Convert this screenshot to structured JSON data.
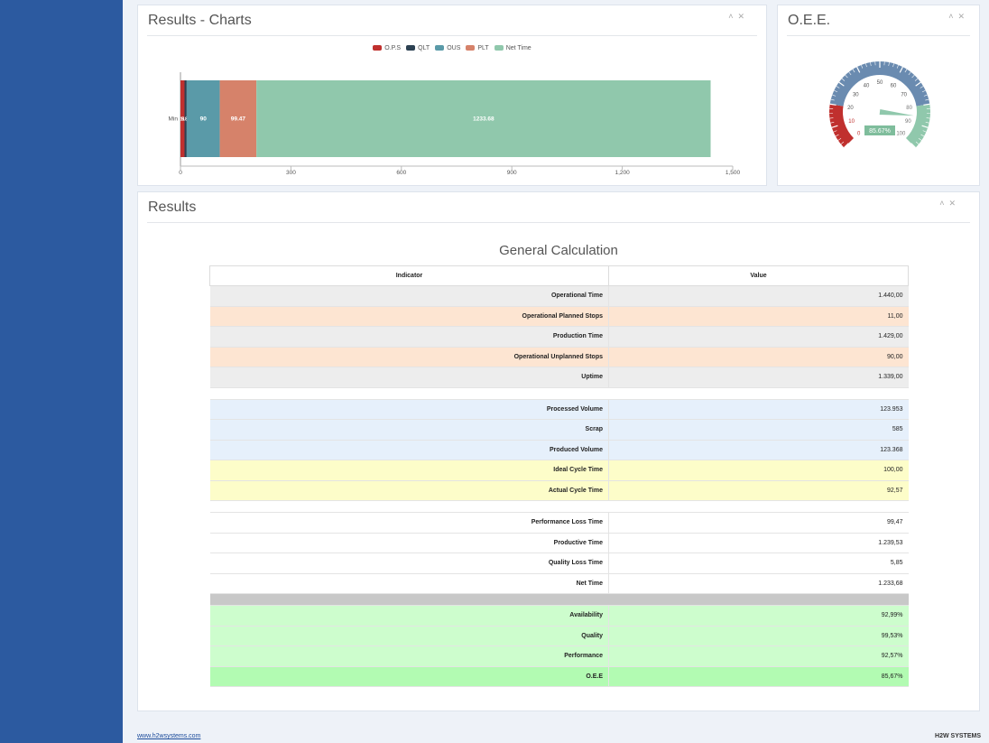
{
  "charts_panel": {
    "title": "Results - Charts",
    "legend": [
      {
        "name": "O.P.S",
        "color": "#c0302e"
      },
      {
        "name": "QLT",
        "color": "#2c4152"
      },
      {
        "name": "OUS",
        "color": "#5a9aa8"
      },
      {
        "name": "PLT",
        "color": "#d6826a"
      },
      {
        "name": "Net Time",
        "color": "#90c8ac"
      }
    ]
  },
  "chart_data": {
    "type": "bar",
    "orientation": "horizontal",
    "stacked": true,
    "categories": [
      "Min"
    ],
    "series": [
      {
        "name": "O.P.S",
        "values": [
          11
        ]
      },
      {
        "name": "QLT",
        "values": [
          5.85
        ]
      },
      {
        "name": "OUS",
        "values": [
          90
        ]
      },
      {
        "name": "PLT",
        "values": [
          99.47
        ]
      },
      {
        "name": "Net Time",
        "values": [
          1233.68
        ]
      }
    ],
    "data_labels": [
      "11",
      "5.85",
      "90",
      "99.47",
      "1233.68"
    ],
    "x_ticks": [
      "0",
      "300",
      "600",
      "900",
      "1,200",
      "1,500"
    ],
    "xlim": [
      0,
      1500
    ],
    "legend_position": "top"
  },
  "oee_panel": {
    "title": "O.E.E.",
    "gauge": {
      "value": 85.67,
      "display": "85.67%",
      "min": 0,
      "max": 100,
      "ticks": [
        "0",
        "10",
        "20",
        "30",
        "40",
        "50",
        "60",
        "70",
        "80",
        "90",
        "100"
      ],
      "bands": [
        {
          "from": 0,
          "to": 20,
          "color": "#c0302e"
        },
        {
          "from": 20,
          "to": 80,
          "color": "#6a8bb0"
        },
        {
          "from": 80,
          "to": 100,
          "color": "#90c8ac"
        }
      ]
    }
  },
  "results_panel": {
    "title": "Results",
    "calc_title": "General Calculation",
    "columns": [
      "Indicator",
      "Value"
    ]
  },
  "rows": [
    {
      "label": "Operational Time",
      "value": "1.440,00",
      "color": "#ededed"
    },
    {
      "label": "Operational Planned Stops",
      "value": "11,00",
      "color": "#fde5d2"
    },
    {
      "label": "Production Time",
      "value": "1.429,00",
      "color": "#ededed"
    },
    {
      "label": "Operational Unplanned Stops",
      "value": "90,00",
      "color": "#fde5d2"
    },
    {
      "label": "Uptime",
      "value": "1.339,00",
      "color": "#ededed"
    },
    {
      "spacer": true,
      "color": "#ffffff"
    },
    {
      "label": "Processed Volume",
      "value": "123.953",
      "color": "#e6f0fb"
    },
    {
      "label": "Scrap",
      "value": "585",
      "color": "#e6f0fb"
    },
    {
      "label": "Produced Volume",
      "value": "123.368",
      "color": "#e6f0fb"
    },
    {
      "label": "Ideal Cycle Time",
      "value": "100,00",
      "color": "#fdfdc9"
    },
    {
      "label": "Actual Cycle Time",
      "value": "92,57",
      "color": "#fdfdc9"
    },
    {
      "spacer": true,
      "color": "#ffffff"
    },
    {
      "label": "Performance Loss Time",
      "value": "99,47",
      "color": "#ffffff"
    },
    {
      "label": "Productive Time",
      "value": "1.239,53",
      "color": "#ffffff"
    },
    {
      "label": "Quality Loss Time",
      "value": "5,85",
      "color": "#ffffff"
    },
    {
      "label": "Net Time",
      "value": "1.233,68",
      "color": "#ffffff"
    },
    {
      "spacer": true,
      "color": "#c8c8c8"
    },
    {
      "label": "Availability",
      "value": "92,99%",
      "color": "#cdfdcd"
    },
    {
      "label": "Quality",
      "value": "99,53%",
      "color": "#cdfdcd"
    },
    {
      "label": "Performance",
      "value": "92,57%",
      "color": "#cdfdcd"
    },
    {
      "label": "O.E.E",
      "value": "85,67%",
      "color": "#b2fbb2"
    }
  ],
  "footer": {
    "link": "www.h2wsystems.com",
    "brand": "H2W SYSTEMS"
  },
  "icons": {
    "collapse": "chevron-up-icon",
    "close": "close-icon"
  }
}
